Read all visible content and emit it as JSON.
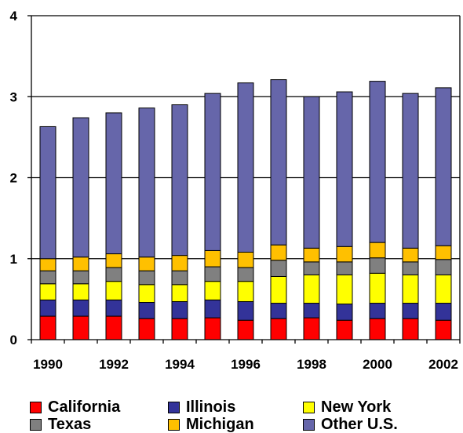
{
  "chart_data": {
    "type": "bar",
    "stacked": true,
    "categories": [
      "1990",
      "1991",
      "1992",
      "1993",
      "1994",
      "1995",
      "1996",
      "1997",
      "1998",
      "1999",
      "2000",
      "2001",
      "2002"
    ],
    "x_tick_labels": [
      "1990",
      "1992",
      "1994",
      "1996",
      "1998",
      "2000",
      "2002"
    ],
    "y_tick_labels": [
      "0",
      "1",
      "2",
      "3",
      "4"
    ],
    "ylim": [
      0,
      4
    ],
    "grid": true,
    "title": "",
    "xlabel": "",
    "ylabel": "",
    "legend_position": "bottom",
    "series": [
      {
        "name": "California",
        "color": "#ff0000",
        "values": [
          0.29,
          0.29,
          0.29,
          0.26,
          0.26,
          0.27,
          0.24,
          0.26,
          0.27,
          0.24,
          0.26,
          0.26,
          0.24
        ]
      },
      {
        "name": "Illinois",
        "color": "#333399",
        "values": [
          0.2,
          0.2,
          0.2,
          0.2,
          0.21,
          0.22,
          0.23,
          0.19,
          0.18,
          0.2,
          0.19,
          0.19,
          0.21
        ]
      },
      {
        "name": "New York",
        "color": "#ffff00",
        "values": [
          0.2,
          0.2,
          0.23,
          0.22,
          0.21,
          0.23,
          0.25,
          0.33,
          0.35,
          0.36,
          0.37,
          0.35,
          0.35
        ]
      },
      {
        "name": "Texas",
        "color": "#808080",
        "values": [
          0.16,
          0.16,
          0.17,
          0.17,
          0.17,
          0.18,
          0.17,
          0.2,
          0.16,
          0.16,
          0.19,
          0.16,
          0.19
        ]
      },
      {
        "name": "Michigan",
        "color": "#ffc000",
        "values": [
          0.15,
          0.17,
          0.17,
          0.17,
          0.19,
          0.2,
          0.19,
          0.19,
          0.17,
          0.19,
          0.19,
          0.17,
          0.17
        ]
      },
      {
        "name": "Other U.S.",
        "color": "#6666aa",
        "values": [
          1.63,
          1.72,
          1.74,
          1.84,
          1.86,
          1.94,
          2.09,
          2.04,
          1.87,
          1.91,
          1.99,
          1.91,
          1.95
        ]
      }
    ]
  }
}
